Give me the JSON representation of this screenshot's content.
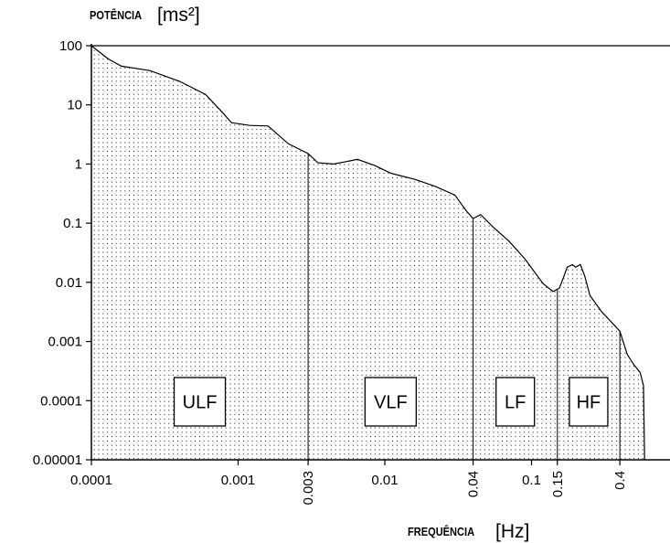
{
  "chart_data": {
    "type": "area",
    "title": "",
    "ylabel": "POTÊNCIA",
    "ylabel_unit": "[ms²]",
    "xlabel": "FREQUÊNCIA",
    "xlabel_unit": "[Hz]",
    "x_scale": "log",
    "y_scale": "log",
    "xlim": [
      0.0001,
      1
    ],
    "ylim": [
      1e-05,
      100
    ],
    "y_ticks": [
      {
        "value": 100,
        "label": "100"
      },
      {
        "value": 10,
        "label": "10"
      },
      {
        "value": 1,
        "label": "1"
      },
      {
        "value": 0.1,
        "label": "0.1"
      },
      {
        "value": 0.01,
        "label": "0.01"
      },
      {
        "value": 0.001,
        "label": "0.001"
      },
      {
        "value": 0.0001,
        "label": "0.0001"
      },
      {
        "value": 1e-05,
        "label": "0.00001"
      }
    ],
    "x_ticks": [
      {
        "value": 0.0001,
        "label": "0.0001",
        "rotated": false
      },
      {
        "value": 0.001,
        "label": "0.001",
        "rotated": false
      },
      {
        "value": 0.003,
        "label": "0.003",
        "rotated": true
      },
      {
        "value": 0.01,
        "label": "0.01",
        "rotated": false
      },
      {
        "value": 0.04,
        "label": "0.04",
        "rotated": true
      },
      {
        "value": 0.1,
        "label": "0.1",
        "rotated": false
      },
      {
        "value": 0.15,
        "label": "0.15",
        "rotated": true
      },
      {
        "value": 0.4,
        "label": "0.4",
        "rotated": true
      }
    ],
    "band_boundaries": [
      0.003,
      0.04,
      0.15,
      0.4
    ],
    "bands": [
      {
        "label": "ULF",
        "from": 0.0001,
        "to": 0.003
      },
      {
        "label": "VLF",
        "from": 0.003,
        "to": 0.04
      },
      {
        "label": "LF",
        "from": 0.04,
        "to": 0.15
      },
      {
        "label": "HF",
        "from": 0.15,
        "to": 0.4
      }
    ],
    "series": [
      {
        "x": [
          0.0001,
          0.00013,
          0.00016,
          0.00025,
          0.0004,
          0.0006,
          0.0008,
          0.0009,
          0.0012,
          0.0016,
          0.0022,
          0.003,
          0.0035,
          0.0045,
          0.0055,
          0.0065,
          0.0085,
          0.011,
          0.016,
          0.022,
          0.03,
          0.036,
          0.04,
          0.045,
          0.055,
          0.07,
          0.09,
          0.12,
          0.14,
          0.155,
          0.165,
          0.175,
          0.19,
          0.2,
          0.215,
          0.23,
          0.25,
          0.3,
          0.4,
          0.45,
          0.5,
          0.55,
          0.58,
          0.59
        ],
        "y": [
          100,
          60,
          45,
          38,
          25,
          15,
          7,
          5,
          4.5,
          4.4,
          2.2,
          1.5,
          1.05,
          1.0,
          1.1,
          1.2,
          0.95,
          0.7,
          0.55,
          0.42,
          0.3,
          0.16,
          0.12,
          0.14,
          0.085,
          0.05,
          0.025,
          0.0095,
          0.007,
          0.008,
          0.012,
          0.018,
          0.02,
          0.018,
          0.02,
          0.013,
          0.006,
          0.0032,
          0.0015,
          0.0006,
          0.0004,
          0.0003,
          0.00018,
          1e-05
        ]
      }
    ],
    "reference_lines": [
      {
        "axis": "y",
        "value": 100
      }
    ],
    "fill_pattern": "dotted",
    "grid": false,
    "legend": "none"
  }
}
